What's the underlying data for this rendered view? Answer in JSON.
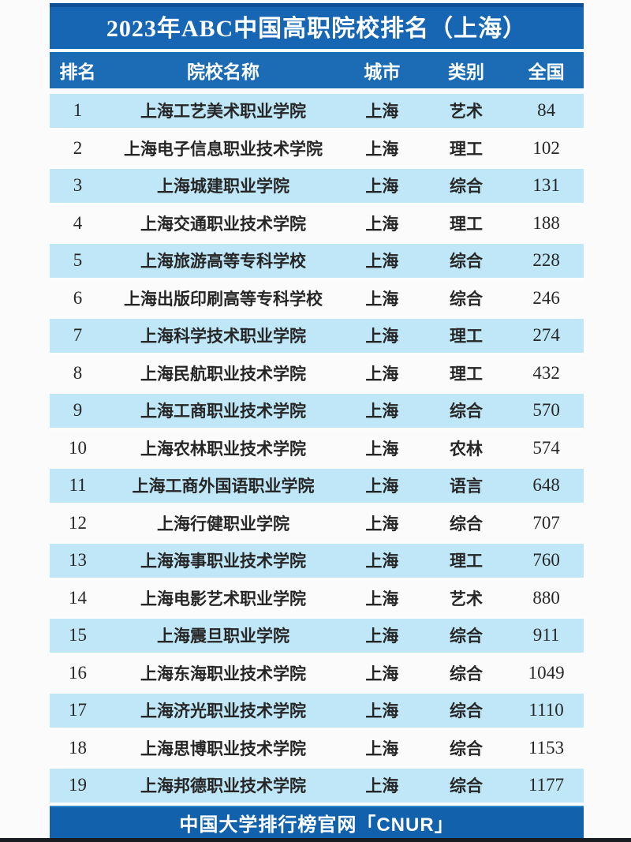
{
  "chart_data": {
    "type": "table",
    "title": "2023年ABC中国高职院校排名（上海）",
    "columns": [
      "排名",
      "院校名称",
      "城市",
      "类别",
      "全国"
    ],
    "rows": [
      [
        "1",
        "上海工艺美术职业学院",
        "上海",
        "艺术",
        "84"
      ],
      [
        "2",
        "上海电子信息职业技术学院",
        "上海",
        "理工",
        "102"
      ],
      [
        "3",
        "上海城建职业学院",
        "上海",
        "综合",
        "131"
      ],
      [
        "4",
        "上海交通职业技术学院",
        "上海",
        "理工",
        "188"
      ],
      [
        "5",
        "上海旅游高等专科学校",
        "上海",
        "综合",
        "228"
      ],
      [
        "6",
        "上海出版印刷高等专科学校",
        "上海",
        "综合",
        "246"
      ],
      [
        "7",
        "上海科学技术职业学院",
        "上海",
        "理工",
        "274"
      ],
      [
        "8",
        "上海民航职业技术学院",
        "上海",
        "理工",
        "432"
      ],
      [
        "9",
        "上海工商职业技术学院",
        "上海",
        "综合",
        "570"
      ],
      [
        "10",
        "上海农林职业技术学院",
        "上海",
        "农林",
        "574"
      ],
      [
        "11",
        "上海工商外国语职业学院",
        "上海",
        "语言",
        "648"
      ],
      [
        "12",
        "上海行健职业学院",
        "上海",
        "综合",
        "707"
      ],
      [
        "13",
        "上海海事职业技术学院",
        "上海",
        "理工",
        "760"
      ],
      [
        "14",
        "上海电影艺术职业学院",
        "上海",
        "艺术",
        "880"
      ],
      [
        "15",
        "上海震旦职业学院",
        "上海",
        "综合",
        "911"
      ],
      [
        "16",
        "上海东海职业技术学院",
        "上海",
        "综合",
        "1049"
      ],
      [
        "17",
        "上海济光职业技术学院",
        "上海",
        "综合",
        "1110"
      ],
      [
        "18",
        "上海思博职业技术学院",
        "上海",
        "综合",
        "1153"
      ],
      [
        "19",
        "上海邦德职业技术学院",
        "上海",
        "综合",
        "1177"
      ]
    ],
    "footer": "中国大学排行榜官网「CNUR」",
    "layout": {
      "striped": true,
      "highlighted_rows": "odd ranks (1,3,5,...) light blue",
      "legend": "none",
      "grid": "off"
    }
  },
  "colors": {
    "band_blue": "#1766b3",
    "band_blue_dark": "#0f4f97",
    "header_blue": "#1b6cb5",
    "footer_blue": "#1261ac",
    "footer_edge": "#2e86c8",
    "row_highlight": "#bfe7f7",
    "row_text": "#262626",
    "page_bg": "#fbfbfb",
    "bottom_strip": "#191c20",
    "text_white": "#ffffff"
  }
}
